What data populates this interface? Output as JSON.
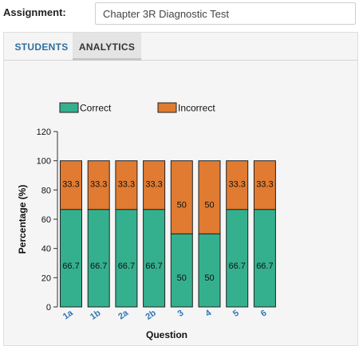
{
  "assignment": {
    "label": "Assignment:",
    "value": "Chapter 3R Diagnostic Test"
  },
  "tabs": [
    {
      "label": "STUDENTS",
      "active": false
    },
    {
      "label": "ANALYTICS",
      "active": true
    }
  ],
  "chart_data": {
    "type": "bar",
    "stacked": true,
    "categories": [
      "1a",
      "1b",
      "2a",
      "2b",
      "3",
      "4",
      "5",
      "6"
    ],
    "series": [
      {
        "name": "Correct",
        "color": "#35b08f",
        "values": [
          66.7,
          66.7,
          66.7,
          66.7,
          50,
          50,
          66.7,
          66.7
        ]
      },
      {
        "name": "Incorrect",
        "color": "#e07b31",
        "values": [
          33.3,
          33.3,
          33.3,
          33.3,
          50,
          50,
          33.3,
          33.3
        ]
      }
    ],
    "data_labels": [
      [
        "66.7",
        "66.7",
        "66.7",
        "66.7",
        "50",
        "50",
        "66.7",
        "66.7"
      ],
      [
        "33.3",
        "33.3",
        "33.3",
        "33.3",
        "50",
        "50",
        "33.3",
        "33.3"
      ]
    ],
    "xlabel": "Question",
    "ylabel": "Percentage (%)",
    "ylim": [
      0,
      120
    ],
    "yticks": [
      0,
      20,
      40,
      60,
      80,
      100,
      120
    ],
    "ytick_labels": [
      "0",
      "20",
      "40",
      "60",
      "80",
      "100",
      "120"
    ],
    "grid": false,
    "legend": "top"
  }
}
